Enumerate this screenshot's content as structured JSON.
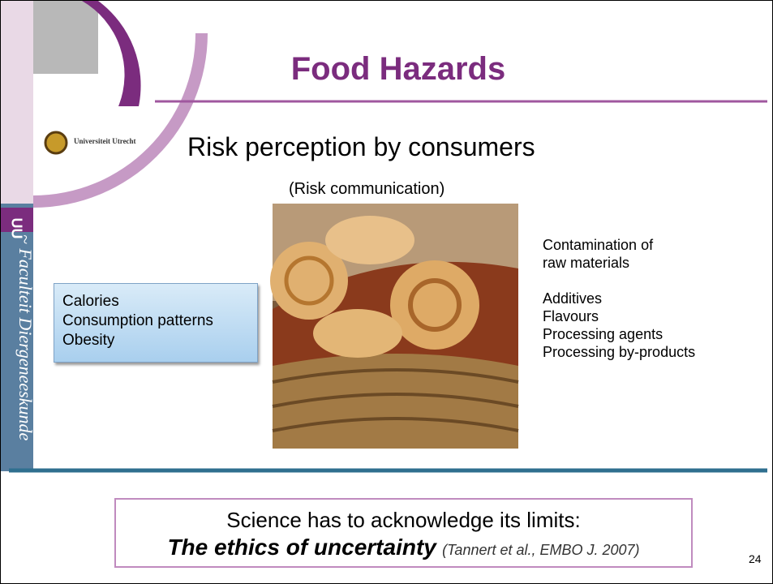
{
  "header": {
    "title": "Food Hazards",
    "subtitle": "Risk perception by consumers",
    "caption": "(Risk communication)"
  },
  "logo": {
    "text": "Universiteit Utrecht"
  },
  "sidebar": {
    "abbr": "UU",
    "text": "~ Faculteit Diergeneeskunde"
  },
  "left_box": {
    "lines": [
      "Calories",
      "Consumption patterns",
      "Obesity"
    ]
  },
  "right_list": {
    "groups": [
      [
        "Contamination of",
        "raw materials"
      ],
      [
        "Additives",
        "Flavours",
        "Processing agents",
        "Processing by-products"
      ]
    ]
  },
  "footer": {
    "line1": "Science has to acknowledge its limits:",
    "emphasis": "The ethics of uncertainty",
    "citation": "(Tannert et al., EMBO J. 2007)"
  },
  "page_number": "24"
}
